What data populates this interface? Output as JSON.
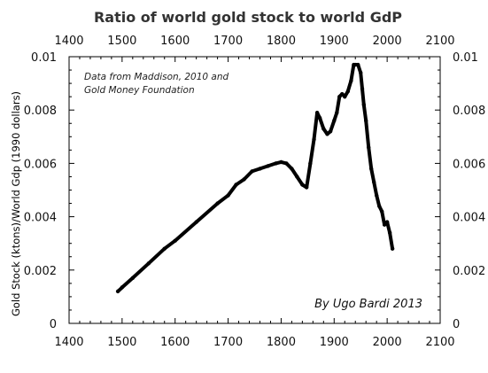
{
  "chart_data": {
    "type": "line",
    "title": "Ratio of world gold stock to world GdP",
    "ylabel": "Gold Stock (ktons)/World Gdp (1990 dollars)",
    "xlabel": "",
    "xlim": [
      1400,
      2100
    ],
    "ylim": [
      0,
      0.01
    ],
    "x_ticks": [
      "1400",
      "1500",
      "1600",
      "1700",
      "1800",
      "1900",
      "2000",
      "2100"
    ],
    "y_ticks": [
      "0",
      "0.002",
      "0.004",
      "0.006",
      "0.008",
      "0.01"
    ],
    "grid": false,
    "annotations": [
      "Data from Maddison, 2010 and",
      "Gold Money Foundation",
      "By Ugo Bardi 2013"
    ],
    "line_color": "#000000",
    "x": [
      1492,
      1500,
      1520,
      1550,
      1580,
      1600,
      1640,
      1680,
      1700,
      1715,
      1730,
      1745,
      1760,
      1775,
      1790,
      1800,
      1810,
      1820,
      1830,
      1840,
      1848,
      1855,
      1862,
      1868,
      1873,
      1880,
      1887,
      1893,
      1900,
      1905,
      1910,
      1915,
      1920,
      1926,
      1932,
      1937,
      1940,
      1945,
      1950,
      1953,
      1956,
      1960,
      1965,
      1970,
      1975,
      1980,
      1985,
      1990,
      1995,
      2000,
      2005,
      2010
    ],
    "y": [
      0.0012,
      0.00135,
      0.0017,
      0.00225,
      0.0028,
      0.0031,
      0.0038,
      0.0045,
      0.0048,
      0.0052,
      0.0054,
      0.0057,
      0.0058,
      0.0059,
      0.006,
      0.00605,
      0.006,
      0.0058,
      0.0055,
      0.0052,
      0.0051,
      0.006,
      0.0069,
      0.0079,
      0.0077,
      0.0073,
      0.0071,
      0.0072,
      0.0076,
      0.0079,
      0.0085,
      0.0086,
      0.0085,
      0.0087,
      0.0091,
      0.0097,
      0.0097,
      0.0097,
      0.0094,
      0.0088,
      0.0082,
      0.0076,
      0.0066,
      0.0058,
      0.0053,
      0.0048,
      0.0044,
      0.0042,
      0.0037,
      0.0038,
      0.0034,
      0.0028
    ]
  }
}
